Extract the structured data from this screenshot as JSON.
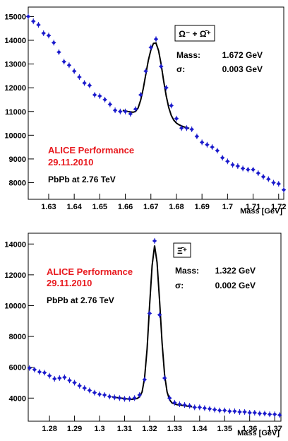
{
  "chart_data": [
    {
      "type": "scatter",
      "xlabel": "Mass [GeV]",
      "ylabel": "",
      "xlim": [
        1.622,
        1.722
      ],
      "ylim": [
        7300,
        15400
      ],
      "xticks": [
        "1.63",
        "1.64",
        "1.65",
        "1.66",
        "1.67",
        "1.68",
        "1.69",
        "1.7",
        "1.71",
        "1.72"
      ],
      "xtick_values": [
        1.63,
        1.64,
        1.65,
        1.66,
        1.67,
        1.68,
        1.69,
        1.7,
        1.71,
        1.72
      ],
      "yticks": [
        "8000",
        "9000",
        "10000",
        "11000",
        "12000",
        "13000",
        "14000",
        "15000"
      ],
      "ytick_values": [
        8000,
        9000,
        10000,
        11000,
        12000,
        13000,
        14000,
        15000
      ],
      "legend": {
        "particle": "Ω⁻ + Ω̄⁺",
        "position": "top-right"
      },
      "fit_text": [
        {
          "label": "Mass:",
          "value": "1.672 GeV"
        },
        {
          "label": "σ:",
          "value": "0.003 GeV"
        }
      ],
      "annotations": {
        "line1": "ALICE Performance",
        "line2": "29.11.2010",
        "line3": "PbPb at 2.76 TeV",
        "accent_color": "#e8191e"
      },
      "marker_color": "#1a1acc",
      "fit_color": "#000000",
      "points": {
        "x": [
          1.622,
          1.624,
          1.626,
          1.628,
          1.63,
          1.632,
          1.634,
          1.636,
          1.638,
          1.64,
          1.642,
          1.644,
          1.646,
          1.648,
          1.65,
          1.652,
          1.654,
          1.656,
          1.658,
          1.66,
          1.662,
          1.664,
          1.666,
          1.668,
          1.67,
          1.672,
          1.674,
          1.676,
          1.678,
          1.68,
          1.682,
          1.684,
          1.686,
          1.688,
          1.69,
          1.692,
          1.694,
          1.696,
          1.698,
          1.7,
          1.702,
          1.704,
          1.706,
          1.708,
          1.71,
          1.712,
          1.714,
          1.716,
          1.718,
          1.72,
          1.722
        ],
        "y": [
          15000,
          14800,
          14650,
          14300,
          14200,
          13900,
          13500,
          13100,
          12950,
          12700,
          12450,
          12200,
          12100,
          11700,
          11650,
          11500,
          11300,
          11050,
          11000,
          11000,
          10900,
          11100,
          11700,
          12700,
          13700,
          14050,
          12900,
          12000,
          11250,
          10700,
          10300,
          10300,
          10250,
          9950,
          9700,
          9600,
          9500,
          9350,
          9050,
          8900,
          8750,
          8700,
          8600,
          8550,
          8550,
          8400,
          8250,
          8150,
          8000,
          7950,
          7700
        ]
      },
      "fit_curve": {
        "x": [
          1.659,
          1.66,
          1.661,
          1.662,
          1.663,
          1.664,
          1.665,
          1.666,
          1.667,
          1.668,
          1.669,
          1.67,
          1.671,
          1.672,
          1.673,
          1.674,
          1.675,
          1.676,
          1.677,
          1.678,
          1.679,
          1.68,
          1.681,
          1.682,
          1.683,
          1.684,
          1.685
        ],
        "y": [
          11050,
          11025,
          11000,
          10980,
          10970,
          11000,
          11150,
          11480,
          11960,
          12560,
          13150,
          13600,
          13870,
          13880,
          13570,
          13000,
          12280,
          11650,
          11160,
          10830,
          10630,
          10510,
          10440,
          10390,
          10350,
          10320,
          10290
        ]
      }
    },
    {
      "type": "scatter",
      "xlabel": "Mass [GeV]",
      "ylabel": "",
      "xlim": [
        1.2715,
        1.3725
      ],
      "ylim": [
        2500,
        14700
      ],
      "xticks": [
        "1.28",
        "1.29",
        "1.3",
        "1.31",
        "1.32",
        "1.33",
        "1.34",
        "1.35",
        "1.36",
        "1.37"
      ],
      "xtick_values": [
        1.28,
        1.29,
        1.3,
        1.31,
        1.32,
        1.33,
        1.34,
        1.35,
        1.36,
        1.37
      ],
      "yticks": [
        "4000",
        "6000",
        "8000",
        "10000",
        "12000",
        "14000"
      ],
      "ytick_values": [
        4000,
        6000,
        8000,
        10000,
        12000,
        14000
      ],
      "legend": {
        "particle": "Ξ̄⁺",
        "position": "top-right"
      },
      "fit_text": [
        {
          "label": "Mass:",
          "value": "1.322 GeV"
        },
        {
          "label": "σ:",
          "value": "0.002 GeV"
        }
      ],
      "annotations": {
        "line1": "ALICE Performance",
        "line2": "29.11.2010",
        "line3": "PbPb at 2.76 TeV",
        "accent_color": "#e8191e"
      },
      "marker_color": "#1a1acc",
      "fit_color": "#000000",
      "points": {
        "x": [
          1.272,
          1.274,
          1.276,
          1.278,
          1.28,
          1.282,
          1.284,
          1.286,
          1.288,
          1.29,
          1.292,
          1.294,
          1.296,
          1.298,
          1.3,
          1.302,
          1.304,
          1.306,
          1.308,
          1.31,
          1.312,
          1.314,
          1.316,
          1.318,
          1.32,
          1.322,
          1.324,
          1.326,
          1.328,
          1.33,
          1.332,
          1.334,
          1.336,
          1.338,
          1.34,
          1.342,
          1.344,
          1.346,
          1.348,
          1.35,
          1.352,
          1.354,
          1.356,
          1.358,
          1.36,
          1.362,
          1.364,
          1.366,
          1.368,
          1.37,
          1.372
        ],
        "y": [
          5950,
          5850,
          5700,
          5650,
          5450,
          5250,
          5300,
          5350,
          5150,
          5000,
          4800,
          4650,
          4500,
          4350,
          4250,
          4200,
          4100,
          4050,
          4000,
          3950,
          3950,
          4000,
          4200,
          5200,
          9500,
          14200,
          9400,
          5300,
          4000,
          3700,
          3600,
          3550,
          3500,
          3400,
          3400,
          3350,
          3300,
          3250,
          3200,
          3200,
          3150,
          3150,
          3100,
          3100,
          3050,
          3050,
          3000,
          3000,
          2950,
          2950,
          2900
        ]
      },
      "fit_curve": {
        "x": [
          1.305,
          1.307,
          1.309,
          1.311,
          1.313,
          1.315,
          1.316,
          1.317,
          1.318,
          1.319,
          1.32,
          1.321,
          1.322,
          1.323,
          1.324,
          1.325,
          1.326,
          1.327,
          1.328,
          1.329,
          1.331,
          1.333,
          1.335,
          1.337
        ],
        "y": [
          4080,
          4030,
          3990,
          3950,
          3920,
          3970,
          4080,
          4400,
          5300,
          7200,
          10000,
          12600,
          13900,
          12800,
          10300,
          7600,
          5500,
          4400,
          3880,
          3680,
          3570,
          3530,
          3480,
          3440
        ]
      }
    }
  ]
}
